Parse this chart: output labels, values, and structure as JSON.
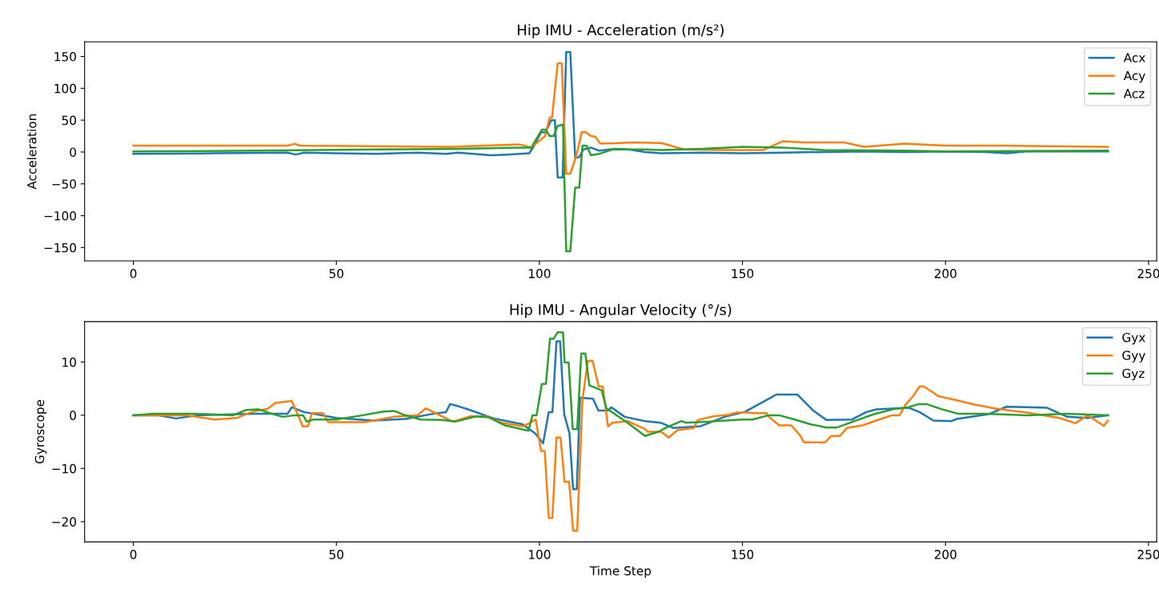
{
  "chart_data": [
    {
      "type": "line",
      "title": "Hip IMU - Acceleration (m/s²)",
      "ylabel": "Acceleration",
      "xlim": [
        -12,
        252
      ],
      "xticks": [
        0,
        50,
        100,
        150,
        200,
        250
      ],
      "ylim": [
        -171,
        173
      ],
      "yticks": [
        -150,
        -100,
        -50,
        0,
        50,
        100,
        150
      ],
      "legend": "top right",
      "grid": false,
      "line_style": "solid",
      "marker": "none",
      "series": [
        {
          "name": "Acx",
          "color": "#1f77b4",
          "x": [
            0,
            20,
            38,
            40,
            42,
            50,
            60,
            70,
            77,
            80,
            88,
            92,
            97.5,
            98.7,
            100.4,
            101.5,
            102.9,
            103.8,
            104.5,
            105.7,
            106.6,
            107.6,
            108.8,
            109.8,
            110.8,
            112.7,
            114.7,
            118.5,
            122,
            126,
            130,
            140,
            150,
            160,
            170,
            180,
            190,
            200,
            210,
            215,
            220,
            240
          ],
          "values": [
            -3,
            -2,
            -1,
            -4,
            -1,
            -2,
            -3,
            -1,
            -3,
            -1,
            -5,
            -4,
            -2,
            10,
            31,
            31,
            50,
            50,
            -40,
            -40,
            157,
            157,
            -9,
            -8,
            4,
            7,
            2,
            5,
            4,
            0,
            -2,
            -1,
            -2,
            -1,
            0,
            1,
            0,
            1,
            0,
            -2,
            1,
            1
          ]
        },
        {
          "name": "Acy",
          "color": "#ff7f0e",
          "x": [
            0,
            20,
            38,
            39.7,
            41,
            60,
            78,
            95,
            98,
            101.4,
            102.5,
            103.1,
            104.5,
            105.5,
            106.6,
            107.6,
            109.1,
            110.4,
            111.4,
            112.7,
            113.7,
            115,
            123,
            130,
            135.6,
            145,
            155,
            160,
            165,
            175,
            180,
            190,
            200,
            215,
            240
          ],
          "values": [
            10,
            10,
            10,
            13,
            10,
            9,
            8,
            12,
            7,
            25,
            54,
            54,
            139,
            139,
            -34,
            -34,
            -6,
            31,
            31,
            25,
            24,
            13,
            15,
            14,
            4,
            3,
            3,
            17,
            15,
            15,
            8,
            13,
            10,
            10,
            8
          ]
        },
        {
          "name": "Acz",
          "color": "#2ca02c",
          "x": [
            0,
            30,
            60,
            80,
            95,
            98,
            100.6,
            101.6,
            102.5,
            103.5,
            104.5,
            105.8,
            106.6,
            107.6,
            108.8,
            109.8,
            110.6,
            111.6,
            112.7,
            114.7,
            118,
            126,
            130,
            140,
            150,
            160,
            170,
            190,
            200,
            240
          ],
          "values": [
            1,
            2,
            4,
            5,
            7,
            7,
            35,
            35,
            25,
            25,
            41,
            43,
            -156,
            -156,
            -56,
            -56,
            10,
            10,
            -5,
            -3,
            4,
            4,
            3,
            5,
            8,
            7,
            3,
            2,
            1,
            2
          ]
        }
      ]
    },
    {
      "type": "line",
      "title": "Hip IMU - Angular Velocity (°/s)",
      "xlabel": "Time Step",
      "ylabel": "Gyroscope",
      "xlim": [
        -12,
        252
      ],
      "xticks": [
        0,
        50,
        100,
        150,
        200,
        250
      ],
      "ylim": [
        -23.8,
        17.6
      ],
      "yticks": [
        -20,
        -10,
        0,
        10
      ],
      "legend": "top right",
      "grid": false,
      "line_style": "solid",
      "marker": "none",
      "series": [
        {
          "name": "Gyx",
          "color": "#1f77b4",
          "x": [
            0,
            6,
            10.5,
            16,
            30,
            34,
            38,
            39,
            42,
            50,
            59,
            67,
            74,
            77,
            78,
            80,
            82.4,
            88.8,
            95.9,
            99.1,
            100.9,
            102.3,
            103.2,
            104.2,
            105.1,
            106.1,
            107.4,
            108.3,
            109.2,
            110,
            113.2,
            114.5,
            117,
            117.7,
            121,
            126,
            129.8,
            133,
            139.5,
            146,
            150.5,
            157,
            158.3,
            163.5,
            167.4,
            170.7,
            177,
            180.5,
            183,
            191,
            193.6,
            197,
            201.5,
            202.8,
            210.6,
            215,
            225,
            230,
            235,
            240
          ],
          "values": [
            0,
            0,
            -0.6,
            0,
            0.3,
            0.3,
            0.3,
            1.5,
            0.6,
            -0.5,
            -1,
            -0.7,
            0.3,
            0.6,
            2.1,
            1.7,
            1.1,
            -0.6,
            -1.7,
            -3.5,
            -5.3,
            0.6,
            0.6,
            13.9,
            13.9,
            0.2,
            -3.4,
            -13.9,
            -13.9,
            3.3,
            3.1,
            0.9,
            0.9,
            1.5,
            -0.3,
            -1.1,
            -1.4,
            -2.4,
            -2.1,
            -0.2,
            0.6,
            3.3,
            3.9,
            3.9,
            0.9,
            -0.9,
            -0.8,
            0.6,
            1.1,
            1.4,
            0.6,
            -1,
            -1.1,
            -0.7,
            0.2,
            1.6,
            1.4,
            -0.3,
            -0.5,
            0
          ]
        },
        {
          "name": "Gyy",
          "color": "#ff7f0e",
          "x": [
            0,
            13,
            20,
            25.6,
            28,
            30.6,
            33,
            35,
            39,
            40.4,
            41.7,
            43,
            44,
            46.7,
            48,
            57,
            64,
            70,
            72,
            78.6,
            83,
            87,
            90.7,
            96,
            97.7,
            99.1,
            100.4,
            101.3,
            102.3,
            103.2,
            104.2,
            105.2,
            106.2,
            107.3,
            108.3,
            109.3,
            110.6,
            111.9,
            113.1,
            114.6,
            115.6,
            116.9,
            118,
            121.7,
            126,
            126.6,
            130,
            131.8,
            134,
            138,
            139,
            142.8,
            146.6,
            148.6,
            151.3,
            152.6,
            155.9,
            156.5,
            159,
            162,
            164,
            165.2,
            170.4,
            171.8,
            174,
            175.7,
            179.6,
            182.9,
            186.8,
            188.7,
            190,
            192,
            193.6,
            194.6,
            196.3,
            198.2,
            202.8,
            206.7,
            211.9,
            220,
            228,
            232,
            235,
            239,
            240
          ],
          "values": [
            0,
            0,
            -0.8,
            -0.5,
            0.3,
            0.9,
            1.2,
            2.3,
            2.7,
            0.3,
            -2.1,
            -2.1,
            0.4,
            0.4,
            -1.3,
            -1.3,
            -0.3,
            0,
            1.3,
            -1.2,
            -0.2,
            -0.2,
            -1.4,
            -2.1,
            -1.4,
            -0.8,
            -6.7,
            -6.7,
            -19.3,
            -19.3,
            -4.2,
            -4.2,
            -12.5,
            -12.5,
            -21.7,
            -21.7,
            2.9,
            10.2,
            10.2,
            5.4,
            5.4,
            -2.1,
            -1.4,
            -1.1,
            -2.6,
            -3.1,
            -3.1,
            -4.2,
            -2.8,
            -2.4,
            -0.9,
            -0.2,
            0.1,
            0.5,
            0.5,
            0.4,
            0.4,
            -0.3,
            -1.9,
            -1.9,
            -3.6,
            -5.1,
            -5.1,
            -3.9,
            -3.9,
            -2.4,
            -1.9,
            -1,
            0,
            0,
            1.8,
            3.6,
            5.4,
            5.4,
            4.6,
            3.6,
            2.8,
            2.1,
            1.3,
            0.5,
            -0.5,
            -1.5,
            0,
            -2,
            -1
          ]
        },
        {
          "name": "Gyz",
          "color": "#2ca02c",
          "x": [
            0,
            5,
            15,
            24.6,
            27.8,
            31,
            33.6,
            36.8,
            39.8,
            41.8,
            42.7,
            44.4,
            50,
            56.5,
            61.6,
            64.3,
            66.9,
            70.8,
            76,
            79.3,
            84.4,
            87.6,
            91.5,
            97.3,
            98.3,
            99.3,
            100.6,
            101.6,
            102.6,
            103.5,
            104.5,
            105.8,
            106.2,
            107.2,
            108.2,
            109.3,
            110.3,
            111.3,
            112.3,
            115.3,
            116.5,
            121.7,
            126,
            129.3,
            131.3,
            135,
            136,
            142,
            149.8,
            152.5,
            156.4,
            159,
            162.9,
            166.8,
            170.7,
            173.3,
            177.2,
            182.4,
            187.5,
            190.8,
            193.4,
            195.3,
            199.2,
            203,
            209.5,
            220,
            230,
            240
          ],
          "values": [
            0,
            0.3,
            0.3,
            0,
            1,
            1.1,
            0.4,
            -0.3,
            0,
            0,
            -1.2,
            -0.8,
            -0.8,
            0,
            0.7,
            0.8,
            0,
            -0.8,
            -0.9,
            -1.2,
            -0.2,
            -0.4,
            -1.9,
            -2.9,
            0,
            0,
            5.9,
            5.9,
            14.4,
            14.4,
            15.6,
            15.6,
            9.9,
            9.9,
            -2.6,
            -2.6,
            11.6,
            11.6,
            5.6,
            4.7,
            1.3,
            -1.4,
            -3.9,
            -3.1,
            -2.3,
            -1.1,
            -1.4,
            -1.2,
            -0.8,
            -0.8,
            0,
            0,
            -0.8,
            -1.7,
            -2.3,
            -2.3,
            -1.2,
            0.2,
            1.2,
            1.5,
            2.1,
            2.1,
            1.1,
            0.3,
            0.3,
            0,
            0.3,
            0
          ]
        }
      ]
    }
  ]
}
